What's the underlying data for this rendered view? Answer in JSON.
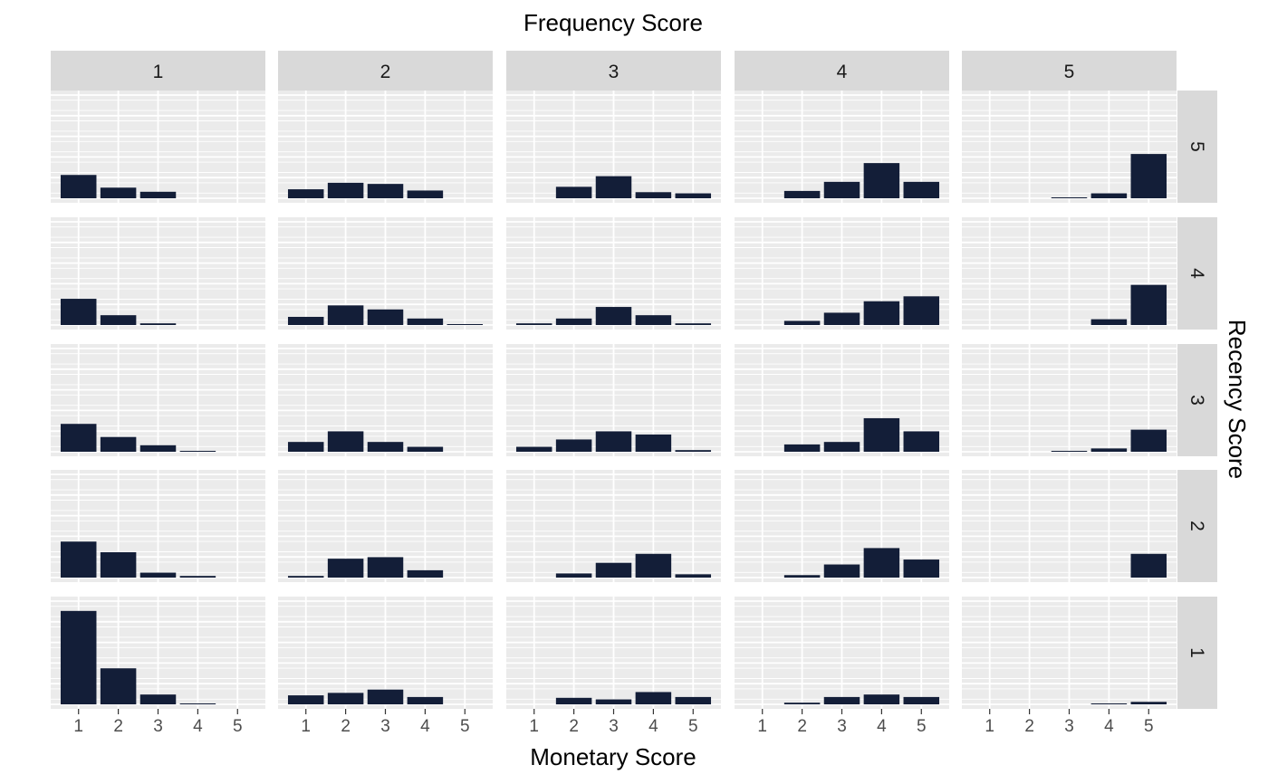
{
  "chart_data": {
    "type": "bar",
    "title": "Frequency Score",
    "xlabel": "Monetary Score",
    "ylabel": "Recency Score",
    "facet_cols": [
      "1",
      "2",
      "3",
      "4",
      "5"
    ],
    "facet_rows": [
      "5",
      "4",
      "3",
      "2",
      "1"
    ],
    "categories": [
      "1",
      "2",
      "3",
      "4",
      "5"
    ],
    "ylim": [
      0,
      1
    ],
    "grid": true,
    "bar_color": "#131e38",
    "panel_bg": "#ebebeb",
    "strip_bg": "#d9d9d9",
    "panels": [
      {
        "recency": "5",
        "frequency": "1",
        "values": [
          0.226,
          0.103,
          0.063,
          0,
          0
        ]
      },
      {
        "recency": "5",
        "frequency": "2",
        "values": [
          0.087,
          0.15,
          0.139,
          0.075,
          0
        ]
      },
      {
        "recency": "5",
        "frequency": "3",
        "values": [
          0,
          0.111,
          0.214,
          0.059,
          0.048
        ]
      },
      {
        "recency": "5",
        "frequency": "4",
        "values": [
          0,
          0.071,
          0.159,
          0.341,
          0.159
        ]
      },
      {
        "recency": "5",
        "frequency": "5",
        "values": [
          0,
          0,
          0.008,
          0.048,
          0.429
        ]
      },
      {
        "recency": "4",
        "frequency": "1",
        "values": [
          0.254,
          0.095,
          0.016,
          0,
          0
        ]
      },
      {
        "recency": "4",
        "frequency": "2",
        "values": [
          0.079,
          0.19,
          0.151,
          0.063,
          0.008
        ]
      },
      {
        "recency": "4",
        "frequency": "3",
        "values": [
          0.016,
          0.063,
          0.175,
          0.095,
          0.016
        ]
      },
      {
        "recency": "4",
        "frequency": "4",
        "values": [
          0,
          0.04,
          0.119,
          0.23,
          0.278
        ]
      },
      {
        "recency": "4",
        "frequency": "5",
        "values": [
          0,
          0,
          0,
          0.056,
          0.389
        ]
      },
      {
        "recency": "3",
        "frequency": "1",
        "values": [
          0.27,
          0.143,
          0.063,
          0.008,
          0
        ]
      },
      {
        "recency": "3",
        "frequency": "2",
        "values": [
          0.095,
          0.198,
          0.095,
          0.048,
          0
        ]
      },
      {
        "recency": "3",
        "frequency": "3",
        "values": [
          0.048,
          0.119,
          0.198,
          0.167,
          0.016
        ]
      },
      {
        "recency": "3",
        "frequency": "4",
        "values": [
          0,
          0.071,
          0.095,
          0.325,
          0.198
        ]
      },
      {
        "recency": "3",
        "frequency": "5",
        "values": [
          0,
          0,
          0.008,
          0.032,
          0.214
        ]
      },
      {
        "recency": "2",
        "frequency": "1",
        "values": [
          0.349,
          0.246,
          0.048,
          0.016,
          0
        ]
      },
      {
        "recency": "2",
        "frequency": "2",
        "values": [
          0.016,
          0.183,
          0.198,
          0.071,
          0
        ]
      },
      {
        "recency": "2",
        "frequency": "3",
        "values": [
          0,
          0.04,
          0.143,
          0.23,
          0.032
        ]
      },
      {
        "recency": "2",
        "frequency": "4",
        "values": [
          0,
          0.024,
          0.127,
          0.286,
          0.175
        ]
      },
      {
        "recency": "2",
        "frequency": "5",
        "values": [
          0,
          0,
          0,
          0,
          0.23
        ]
      },
      {
        "recency": "1",
        "frequency": "1",
        "values": [
          0.905,
          0.349,
          0.095,
          0.008,
          0
        ]
      },
      {
        "recency": "1",
        "frequency": "2",
        "values": [
          0.087,
          0.111,
          0.143,
          0.071,
          0
        ]
      },
      {
        "recency": "1",
        "frequency": "3",
        "values": [
          0,
          0.063,
          0.048,
          0.119,
          0.071
        ]
      },
      {
        "recency": "1",
        "frequency": "4",
        "values": [
          0,
          0.016,
          0.071,
          0.095,
          0.071
        ]
      },
      {
        "recency": "1",
        "frequency": "5",
        "values": [
          0,
          0,
          0,
          0.008,
          0.024
        ]
      }
    ]
  }
}
